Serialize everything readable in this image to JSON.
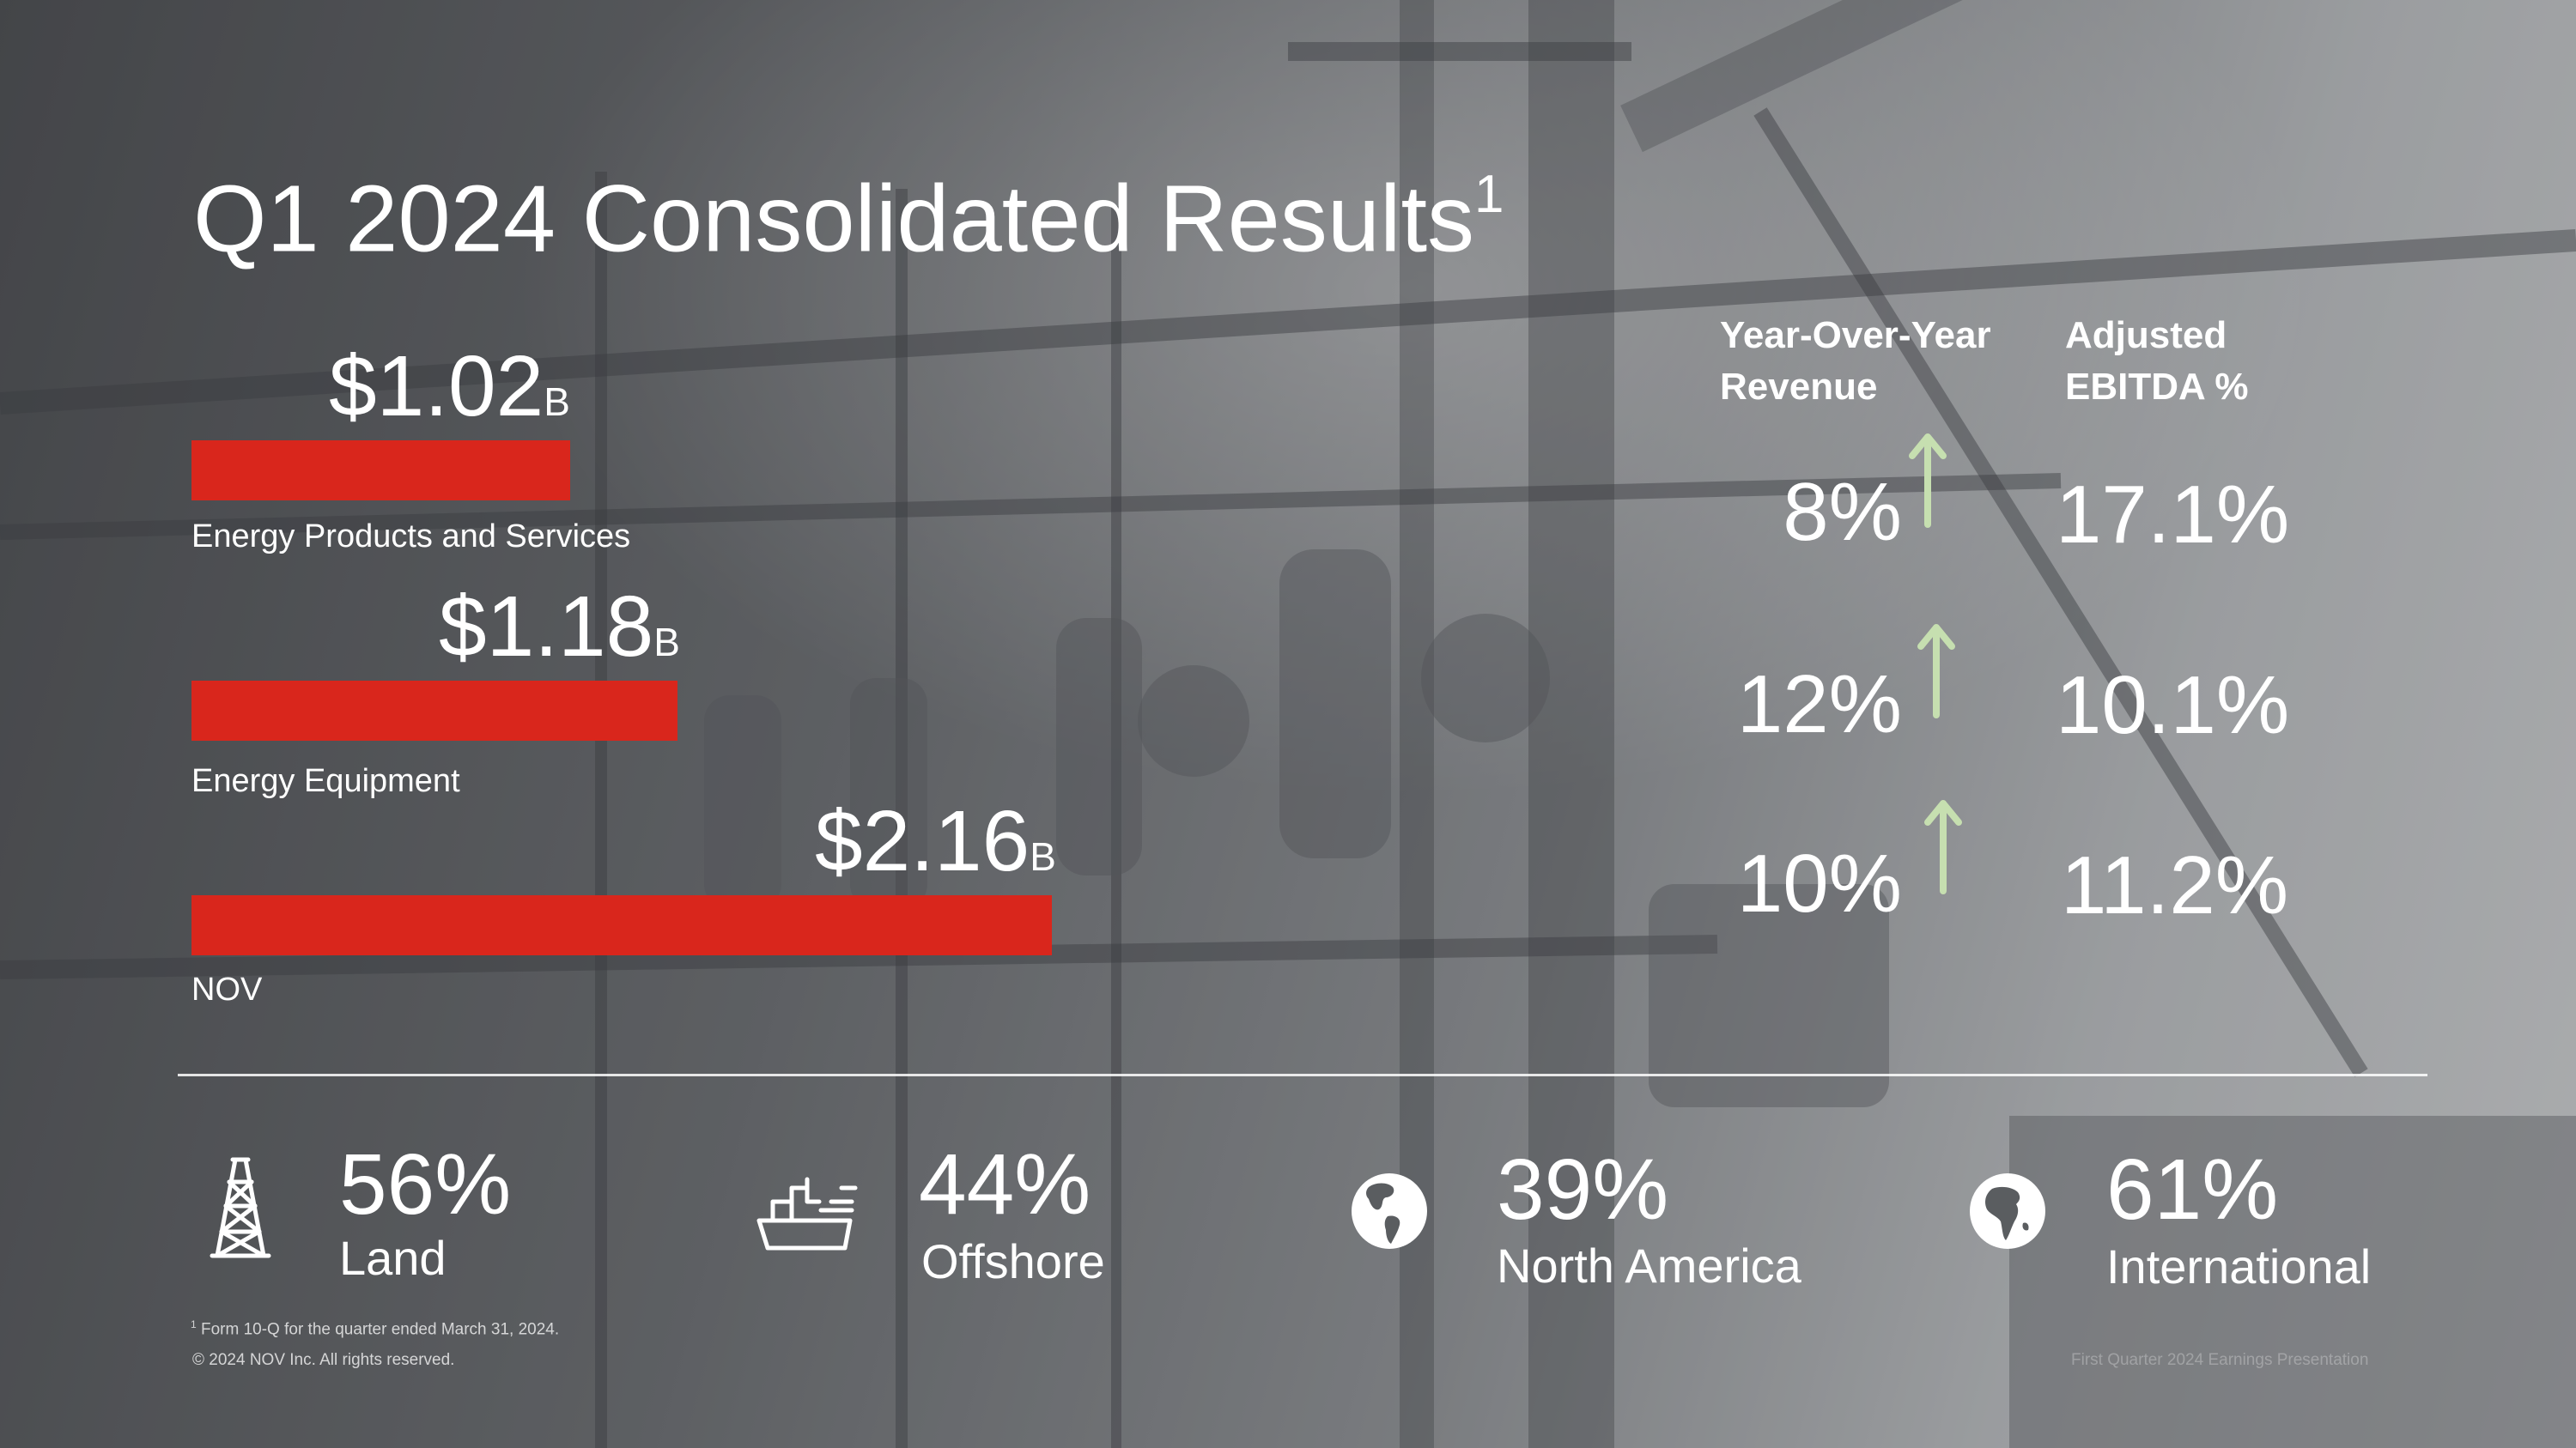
{
  "slide": {
    "title": "Q1 2024 Consolidated Results",
    "title_footnote_marker": "1"
  },
  "segments": [
    {
      "value": "$1.02",
      "unit": "B",
      "label": "Energy Products and Services",
      "revenue_billions": 1.02
    },
    {
      "value": "$1.18",
      "unit": "B",
      "label": "Energy Equipment",
      "revenue_billions": 1.18
    },
    {
      "value": "$2.16",
      "unit": "B",
      "label": "NOV",
      "revenue_billions": 2.16
    }
  ],
  "metrics": {
    "headers": {
      "yoy": "Year-Over-Year\nRevenue",
      "ebitda": "Adjusted\nEBITDA %"
    },
    "rows": [
      {
        "yoy": "8%",
        "trend": "up",
        "ebitda": "17.1%"
      },
      {
        "yoy": "12%",
        "trend": "up",
        "ebitda": "10.1%"
      },
      {
        "yoy": "10%",
        "trend": "up",
        "ebitda": "11.2%"
      }
    ]
  },
  "mix": [
    {
      "pct": "56%",
      "label": "Land",
      "icon": "oil-derrick-icon"
    },
    {
      "pct": "44%",
      "label": "Offshore",
      "icon": "offshore-vessel-icon"
    },
    {
      "pct": "39%",
      "label": "North America",
      "icon": "globe-americas-icon"
    },
    {
      "pct": "61%",
      "label": "International",
      "icon": "globe-africa-icon"
    }
  ],
  "footnotes": {
    "marker": "1",
    "note": "Form 10-Q for the quarter ended March 31, 2024.",
    "copyright": "© 2024 NOV Inc. All rights reserved.",
    "faint_footer": "First Quarter 2024 Earnings Presentation"
  },
  "colors": {
    "bar": "#d9261c",
    "arrow": "#c6dfb0",
    "text": "#ffffff"
  }
}
